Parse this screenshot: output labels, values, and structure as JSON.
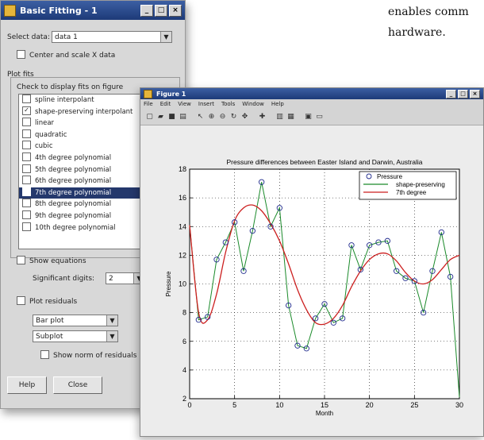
{
  "document_text": {
    "line1": "enables comm",
    "line2": "hardware."
  },
  "basic_fitting": {
    "title": "Basic Fitting - 1",
    "select_data_label": "Select data:",
    "select_data_value": "data 1",
    "center_scale_label": "Center and scale X data",
    "plot_fits_label": "Plot fits",
    "check_to_display_label": "Check to display fits on figure",
    "fits": [
      {
        "label": "spline interpolant",
        "checked": false
      },
      {
        "label": "shape-preserving interpolant",
        "checked": true
      },
      {
        "label": "linear",
        "checked": false
      },
      {
        "label": "quadratic",
        "checked": false
      },
      {
        "label": "cubic",
        "checked": false
      },
      {
        "label": "4th degree polynomial",
        "checked": false
      },
      {
        "label": "5th degree polynomial",
        "checked": false
      },
      {
        "label": "6th degree polynomial",
        "checked": false
      },
      {
        "label": "7th degree polynomial",
        "checked": true,
        "selected": true
      },
      {
        "label": "8th degree polynomial",
        "checked": false
      },
      {
        "label": "9th degree polynomial",
        "checked": false
      },
      {
        "label": "10th degree polynomial",
        "checked": false
      }
    ],
    "show_equations_label": "Show equations",
    "sig_digits_label": "Significant digits:",
    "sig_digits_value": "2",
    "plot_residuals_label": "Plot residuals",
    "residual_type_value": "Bar plot",
    "residual_location_value": "Subplot",
    "show_norm_label": "Show norm of residuals",
    "help_button": "Help",
    "close_button": "Close"
  },
  "figure_window": {
    "title": "Figure 1",
    "menu": [
      "File",
      "Edit",
      "View",
      "Insert",
      "Tools",
      "Window",
      "Help"
    ],
    "toolbar_icons": [
      "new-icon",
      "open-icon",
      "save-icon",
      "print-icon",
      "sep",
      "pointer-icon",
      "zoom-in-icon",
      "zoom-out-icon",
      "rotate-icon",
      "pan-icon",
      "sep",
      "data-cursor-icon",
      "sep",
      "colorbar-icon",
      "legend-icon",
      "sep",
      "plot-tools-icon",
      "dock-icon"
    ]
  },
  "chart_data": {
    "type": "line",
    "title": "Pressure differences between Easter Island and Darwin, Australia",
    "xlabel": "Month",
    "ylabel": "Pressure",
    "xlim": [
      0,
      30
    ],
    "ylim": [
      2,
      18
    ],
    "xticks": [
      0,
      5,
      10,
      15,
      20,
      25,
      30
    ],
    "yticks": [
      2,
      4,
      6,
      8,
      10,
      12,
      14,
      16,
      18
    ],
    "grid": true,
    "legend_position": "top-right",
    "x": [
      1,
      2,
      3,
      4,
      5,
      6,
      7,
      8,
      9,
      10,
      11,
      12,
      13,
      14,
      15,
      16,
      17,
      18,
      19,
      20,
      21,
      22,
      23,
      24,
      25,
      26,
      27,
      28,
      29
    ],
    "series": [
      {
        "name": "Pressure",
        "style": "markers",
        "color": "#1f2a8c",
        "values": [
          7.5,
          7.7,
          11.7,
          12.9,
          14.3,
          10.9,
          13.7,
          17.1,
          14.0,
          15.3,
          8.5,
          5.7,
          5.5,
          7.6,
          8.6,
          7.3,
          7.6,
          12.7,
          11.0,
          12.7,
          12.9,
          13.0,
          10.9,
          10.4,
          10.2,
          8.0,
          10.9,
          13.6,
          10.5
        ]
      },
      {
        "name": "shape-preserving",
        "style": "line",
        "color": "#1a8a2a",
        "x": [
          0,
          1,
          2,
          3,
          4,
          5,
          6,
          7,
          8,
          9,
          10,
          11,
          12,
          13,
          14,
          15,
          16,
          17,
          18,
          19,
          20,
          21,
          22,
          23,
          24,
          25,
          26,
          27,
          28,
          29,
          30
        ],
        "values": [
          14.1,
          7.5,
          7.7,
          11.7,
          12.9,
          14.3,
          10.9,
          13.7,
          17.1,
          14.0,
          15.3,
          8.5,
          5.7,
          5.5,
          7.6,
          8.6,
          7.3,
          7.6,
          12.7,
          11.0,
          12.7,
          12.9,
          13.0,
          10.9,
          10.4,
          10.2,
          8.0,
          10.9,
          13.6,
          10.5,
          2.1
        ]
      },
      {
        "name": "7th degree",
        "style": "line",
        "color": "#cc1f1f",
        "x": [
          0,
          1,
          2,
          3,
          4,
          5,
          6,
          7,
          8,
          9,
          10,
          11,
          12,
          13,
          14,
          15,
          16,
          17,
          18,
          19,
          20,
          21,
          22,
          23,
          24,
          25,
          26,
          27,
          28,
          29,
          30
        ],
        "values": [
          14.1,
          8.0,
          7.5,
          9.3,
          12.2,
          14.4,
          15.3,
          15.5,
          15.1,
          14.2,
          13.0,
          11.4,
          9.6,
          8.2,
          7.3,
          7.2,
          7.6,
          8.5,
          9.8,
          10.9,
          11.7,
          12.1,
          12.1,
          11.6,
          10.8,
          10.2,
          10.0,
          10.3,
          11.0,
          11.7,
          12.0
        ]
      }
    ]
  }
}
